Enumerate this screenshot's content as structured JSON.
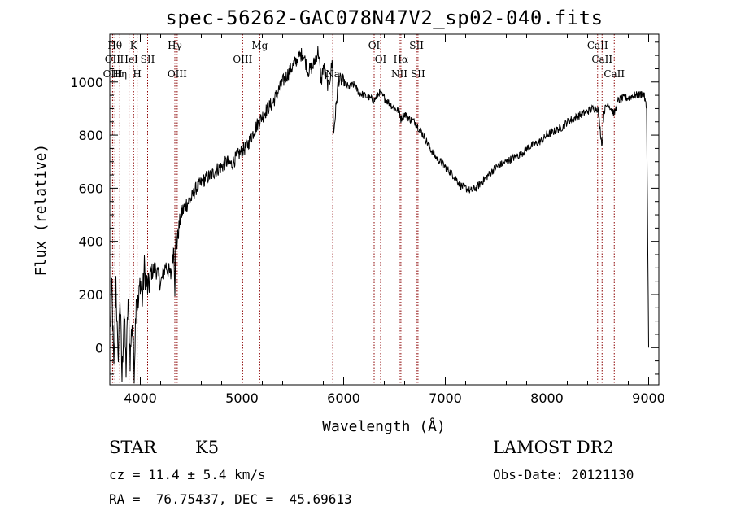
{
  "chart_data": {
    "type": "line",
    "title": "spec-56262-GAC078N47V2_sp02-040.fits",
    "xlabel": "Wavelength (Å)",
    "ylabel": "Flux (relative)",
    "xlim": [
      3700,
      9100
    ],
    "ylim": [
      -140,
      1180
    ],
    "x_ticks": [
      "4000",
      "5000",
      "6000",
      "7000",
      "8000",
      "9000"
    ],
    "y_ticks": [
      "0",
      "200",
      "400",
      "600",
      "800",
      "1000"
    ],
    "x_tick_values": [
      4000,
      5000,
      6000,
      7000,
      8000,
      9000
    ],
    "y_tick_values": [
      0,
      200,
      400,
      600,
      800,
      1000
    ],
    "series": [
      {
        "x": [
          3705,
          3720,
          3740,
          3760,
          3780,
          3800,
          3820,
          3840,
          3860,
          3880,
          3900,
          3920,
          3940,
          3960,
          3980,
          4000,
          4020,
          4040,
          4060,
          4080,
          4100,
          4150,
          4200,
          4250,
          4300,
          4330,
          4340,
          4350,
          4360,
          4380,
          4400,
          4450,
          4500,
          4550,
          4600,
          4650,
          4700,
          4750,
          4800,
          4850,
          4900,
          4950,
          5000,
          5050,
          5100,
          5150,
          5200,
          5250,
          5300,
          5350,
          5400,
          5450,
          5500,
          5550,
          5600,
          5650,
          5700,
          5750,
          5780,
          5800,
          5850,
          5890,
          5900,
          5950,
          6000,
          6050,
          6100,
          6150,
          6200,
          6250,
          6300,
          6350,
          6400,
          6450,
          6500,
          6550,
          6563,
          6600,
          6650,
          6700,
          6750,
          6800,
          6850,
          6900,
          6950,
          7000,
          7050,
          7100,
          7150,
          7200,
          7250,
          7300,
          7350,
          7400,
          7450,
          7500,
          7550,
          7600,
          7650,
          7700,
          7750,
          7800,
          7850,
          7900,
          7950,
          8000,
          8050,
          8100,
          8150,
          8200,
          8250,
          8300,
          8350,
          8400,
          8450,
          8500,
          8542,
          8560,
          8600,
          8662,
          8700,
          8750,
          8800,
          8850,
          8900,
          8950,
          8980,
          9000
        ],
        "y": [
          60,
          240,
          -100,
          260,
          -60,
          200,
          -120,
          140,
          -80,
          180,
          -40,
          100,
          -90,
          210,
          150,
          260,
          180,
          300,
          240,
          220,
          280,
          300,
          240,
          310,
          270,
          380,
          220,
          420,
          390,
          450,
          500,
          540,
          560,
          600,
          620,
          640,
          650,
          670,
          680,
          700,
          690,
          720,
          740,
          760,
          800,
          840,
          870,
          900,
          920,
          960,
          1000,
          1030,
          1060,
          1090,
          1110,
          1040,
          1060,
          1120,
          1000,
          1060,
          980,
          1080,
          800,
          1010,
          1000,
          980,
          990,
          960,
          950,
          940,
          930,
          960,
          940,
          920,
          900,
          890,
          860,
          880,
          860,
          850,
          820,
          790,
          750,
          720,
          700,
          680,
          660,
          640,
          610,
          600,
          590,
          600,
          620,
          640,
          660,
          680,
          690,
          700,
          710,
          720,
          730,
          750,
          760,
          770,
          780,
          800,
          810,
          820,
          830,
          850,
          860,
          870,
          880,
          890,
          900,
          900,
          760,
          890,
          920,
          880,
          930,
          940,
          940,
          950,
          950,
          960,
          900,
          0
        ]
      }
    ],
    "lines": [
      {
        "x": 3750,
        "label": "Hθ",
        "row": 0
      },
      {
        "x": 3727,
        "label": "OII",
        "row": 1
      },
      {
        "x": 3729,
        "label": "OIII",
        "row": 2
      },
      {
        "x": 3798,
        "label": "Hη",
        "row": 2
      },
      {
        "x": 3889,
        "label": "HeI",
        "row": 1
      },
      {
        "x": 3934,
        "label": "K",
        "row": 0
      },
      {
        "x": 3969,
        "label": "H",
        "row": 2
      },
      {
        "x": 4072,
        "label": "SII",
        "row": 1
      },
      {
        "x": 4340,
        "label": "Hγ",
        "row": 0
      },
      {
        "x": 4363,
        "label": "OIII",
        "row": 2
      },
      {
        "x": 5007,
        "label": "OIII",
        "row": 1
      },
      {
        "x": 5175,
        "label": "Mg",
        "row": 0
      },
      {
        "x": 5893,
        "label": "Na",
        "row": 2
      },
      {
        "x": 6300,
        "label": "OI",
        "row": 0
      },
      {
        "x": 6364,
        "label": "OI",
        "row": 1
      },
      {
        "x": 6548,
        "label": "NII",
        "row": 2
      },
      {
        "x": 6563,
        "label": "Hα",
        "row": 1
      },
      {
        "x": 6717,
        "label": "SII",
        "row": 0
      },
      {
        "x": 6731,
        "label": "SII",
        "row": 2
      },
      {
        "x": 8498,
        "label": "CaII",
        "row": 0
      },
      {
        "x": 8542,
        "label": "CaII",
        "row": 1
      },
      {
        "x": 8662,
        "label": "CaII",
        "row": 2
      }
    ]
  },
  "info": {
    "class": "STAR",
    "subclass": "K5",
    "survey": "LAMOST DR2",
    "cz": "cz = 11.4 ± 5.4 km/s",
    "obs_date": "Obs-Date: 20121130",
    "radec": "RA =  76.75437, DEC =  45.69613"
  },
  "colors": {
    "spectrum": "#000000",
    "line_markers": "#8b0000"
  }
}
